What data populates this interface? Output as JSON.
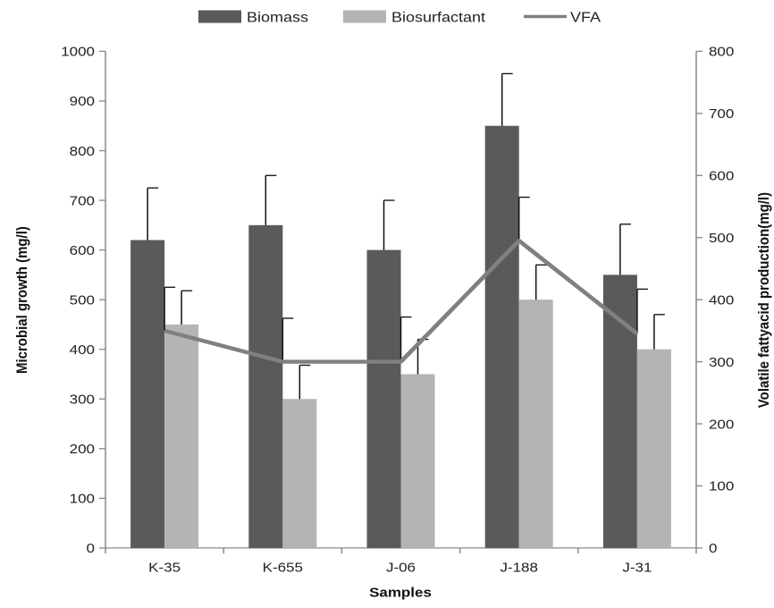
{
  "chart_data": {
    "type": "bar",
    "categories": [
      "K-35",
      "K-655",
      "J-06",
      "J-188",
      "J-31"
    ],
    "series": [
      {
        "name": "Biomass",
        "type": "bar",
        "axis": "left",
        "color": "#5a5a5a",
        "values": [
          620,
          650,
          600,
          850,
          550
        ],
        "errors": [
          105,
          100,
          100,
          105,
          102
        ]
      },
      {
        "name": "Biosurfactant",
        "type": "bar",
        "axis": "left",
        "color": "#b4b4b4",
        "values": [
          450,
          300,
          350,
          500,
          400
        ],
        "errors": [
          68,
          68,
          70,
          70,
          70
        ]
      },
      {
        "name": "VFA",
        "type": "line",
        "axis": "right",
        "color": "#808080",
        "values": [
          350,
          300,
          300,
          495,
          345
        ],
        "errors": [
          70,
          70,
          72,
          70,
          72
        ]
      }
    ],
    "xlabel": "Samples",
    "ylabel": "Microbial  growth (mg/l)",
    "y2label": "Volatile fattyacid production(mg/l)",
    "ylim": [
      0,
      1000
    ],
    "y2lim": [
      0,
      800
    ],
    "yticks": [
      "0",
      "100",
      "200",
      "300",
      "400",
      "500",
      "600",
      "700",
      "800",
      "900",
      "1000"
    ],
    "y2ticks": [
      "0",
      "100",
      "200",
      "300",
      "400",
      "500",
      "600",
      "700",
      "800"
    ],
    "legend_position": "top",
    "grid": false
  }
}
